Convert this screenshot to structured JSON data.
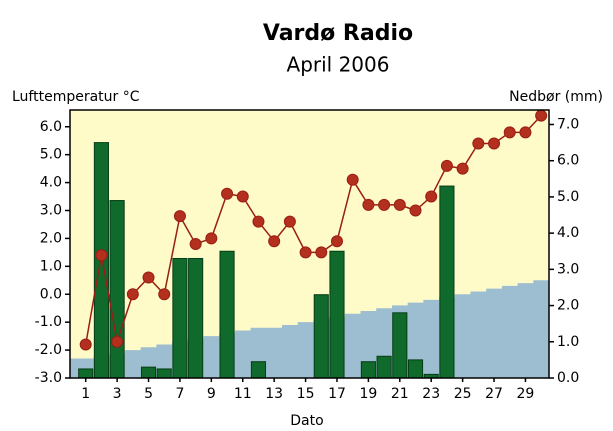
{
  "chart_data": {
    "type": "bar",
    "title": "Vardø Radio",
    "subtitle": "April 2006",
    "ylabel": "Lufttemperatur °C",
    "y2label": "Nedbør (mm)",
    "xlabel": "Dato",
    "x": [
      1,
      2,
      3,
      4,
      5,
      6,
      7,
      8,
      9,
      10,
      11,
      12,
      13,
      14,
      15,
      16,
      17,
      18,
      19,
      20,
      21,
      22,
      23,
      24,
      25,
      26,
      27,
      28,
      29,
      30
    ],
    "xlim": [
      0,
      30.5
    ],
    "xticks": [
      1,
      3,
      5,
      7,
      9,
      11,
      13,
      15,
      17,
      19,
      21,
      23,
      25,
      27,
      29
    ],
    "ylim": [
      -3,
      6.6
    ],
    "yticks": [
      {
        "value": 6,
        "label": "6.0"
      },
      {
        "value": 5,
        "label": "5.0"
      },
      {
        "value": 4,
        "label": "4.0"
      },
      {
        "value": 3,
        "label": "3.0"
      },
      {
        "value": 2,
        "label": "2.0"
      },
      {
        "value": 1,
        "label": "1.0"
      },
      {
        "value": 0,
        "label": "0.0"
      },
      {
        "value": -1,
        "label": "-1.0"
      },
      {
        "value": -2,
        "label": "-2.0"
      },
      {
        "value": -3,
        "label": "-3.0"
      }
    ],
    "y2lim": [
      0,
      7.4
    ],
    "y2ticks": [
      {
        "value": 7,
        "label": "7.0"
      },
      {
        "value": 6,
        "label": "6.0"
      },
      {
        "value": 5,
        "label": "5.0"
      },
      {
        "value": 4,
        "label": "4.0"
      },
      {
        "value": 3,
        "label": "3.0"
      },
      {
        "value": 2,
        "label": "2.0"
      },
      {
        "value": 1,
        "label": "1.0"
      },
      {
        "value": 0,
        "label": "0.0"
      }
    ],
    "background": "#fefbc9",
    "area": {
      "color": "#9dbdd1",
      "values": [
        -2.3,
        -2.2,
        -2.1,
        -2.0,
        -1.9,
        -1.8,
        -1.7,
        -1.6,
        -1.5,
        -1.4,
        -1.3,
        -1.2,
        -1.2,
        -1.1,
        -1.0,
        -0.9,
        -0.8,
        -0.7,
        -0.6,
        -0.5,
        -0.4,
        -0.3,
        -0.2,
        -0.1,
        0.0,
        0.1,
        0.2,
        0.3,
        0.4,
        0.5
      ]
    },
    "series": [
      {
        "type": "bar",
        "axis": "y2",
        "color": "#0f6a2b",
        "values": [
          0.25,
          6.5,
          4.9,
          0,
          0.3,
          0.25,
          3.3,
          3.3,
          0,
          3.5,
          0,
          0.45,
          0,
          0,
          0,
          2.3,
          3.5,
          0,
          0.45,
          0.6,
          1.8,
          0.5,
          0.1,
          5.3,
          0,
          0,
          0,
          0,
          0,
          0
        ]
      },
      {
        "type": "line",
        "axis": "y",
        "color": "#9a1e14",
        "values": [
          -1.8,
          1.4,
          -1.7,
          0.0,
          0.6,
          0.0,
          2.8,
          1.8,
          2.0,
          3.6,
          3.5,
          2.6,
          1.9,
          2.6,
          1.5,
          1.5,
          1.9,
          4.1,
          3.2,
          3.2,
          3.2,
          3.0,
          3.5,
          4.6,
          4.5,
          5.4,
          5.4,
          5.8,
          5.8,
          6.4
        ]
      }
    ]
  }
}
